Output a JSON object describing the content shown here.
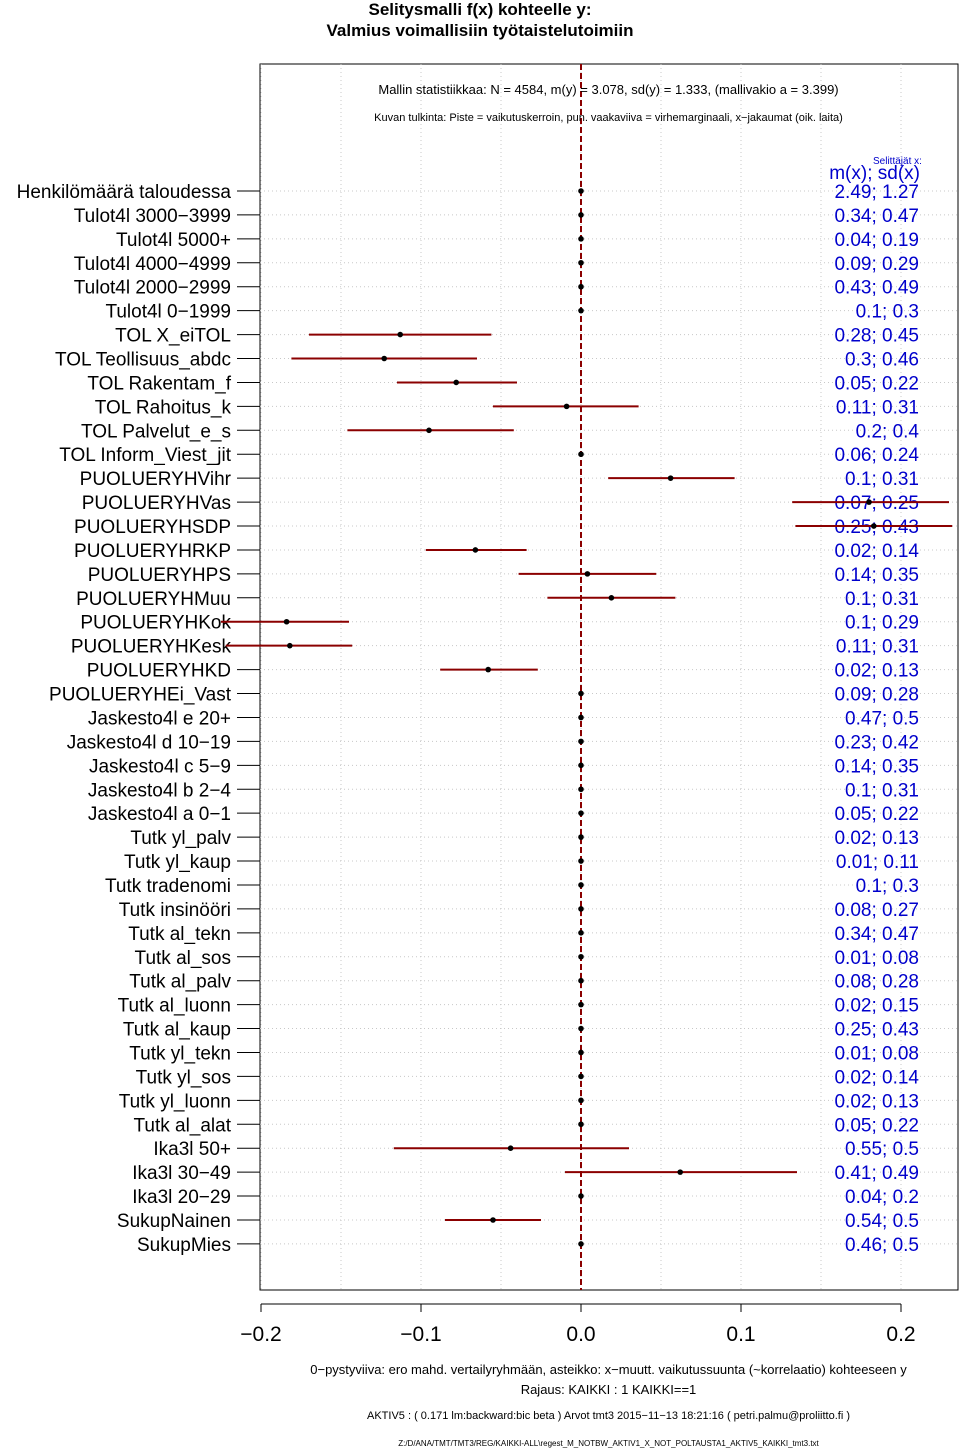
{
  "title": "Selitysmalli f(x) kohteelle y:",
  "subtitle": "Valmius voimallisiin työtaistelutoimiin",
  "stats_line": "Mallin statistiikkaa: N = 4584, m(y) = 3.078, sd(y) = 1.333, (mallivakio a = 3.399)",
  "interpretation_line": "Kuvan tulkinta: Piste = vaikutuskerroin, pun. vaakaviiva = virhemarginaali, x−jakaumat (oik. laita)",
  "right_header_small": "Selittäjät x:",
  "right_header": "m(x); sd(x)",
  "footer": {
    "line1": "0−pystyviiva: ero mahd. vertailyryhmään, asteikko: x−muutt. vaikutussuunta (~korrelaatio) kohteeseen y",
    "line2": "Rajaus: KAIKKI : 1  KAIKKI==1",
    "line3": "AKTIV5 : ( 0.171 lm:backward:bic beta )   Arvot tmt3 2015−11−13 18:21:16 ( petri.palmu@proliitto.fi )",
    "line4": "Z:/D/ANA/TMT/TMT3/REG/KAIKKI-ALL\\regest_M_NOTBW_AKTIV1_X_NOT_POLTAUSTA1_AKTIV5_KAIKKI_tmt3.txt"
  },
  "colors": {
    "point": "#000000",
    "interval": "#8b0000",
    "zero_line": "#8b0000",
    "stats_text": "#0000cc",
    "grid": "#c8c8c8"
  },
  "chart_data": {
    "type": "forest",
    "xlim": [
      -0.2,
      0.2
    ],
    "x_ticks": [
      -0.2,
      -0.1,
      0.0,
      0.1,
      0.2
    ],
    "x_tick_labels": [
      "−0.2",
      "−0.1",
      "0.0",
      "0.1",
      "0.2"
    ],
    "reference_line": 0.0,
    "grid": true,
    "rows": [
      {
        "label": "Henkilömäärä taloudessa",
        "est": 0.0,
        "lo": null,
        "hi": null,
        "stat": "2.49; 1.27"
      },
      {
        "label": "Tulot4l 3000−3999",
        "est": 0.0,
        "lo": null,
        "hi": null,
        "stat": "0.34; 0.47"
      },
      {
        "label": "Tulot4l 5000+",
        "est": 0.0,
        "lo": null,
        "hi": null,
        "stat": "0.04; 0.19"
      },
      {
        "label": "Tulot4l 4000−4999",
        "est": 0.0,
        "lo": null,
        "hi": null,
        "stat": "0.09; 0.29"
      },
      {
        "label": "Tulot4l 2000−2999",
        "est": 0.0,
        "lo": null,
        "hi": null,
        "stat": "0.43; 0.49"
      },
      {
        "label": "Tulot4l 0−1999",
        "est": 0.0,
        "lo": null,
        "hi": null,
        "stat": "0.1; 0.3"
      },
      {
        "label": "TOL X_eiTOL",
        "est": -0.113,
        "lo": -0.17,
        "hi": -0.056,
        "stat": "0.28; 0.45"
      },
      {
        "label": "TOL Teollisuus_abdc",
        "est": -0.123,
        "lo": -0.181,
        "hi": -0.065,
        "stat": "0.3; 0.46"
      },
      {
        "label": "TOL Rakentam_f",
        "est": -0.078,
        "lo": -0.115,
        "hi": -0.04,
        "stat": "0.05; 0.22"
      },
      {
        "label": "TOL Rahoitus_k",
        "est": -0.009,
        "lo": -0.055,
        "hi": 0.036,
        "stat": "0.11; 0.31"
      },
      {
        "label": "TOL Palvelut_e_s",
        "est": -0.095,
        "lo": -0.146,
        "hi": -0.042,
        "stat": "0.2; 0.4"
      },
      {
        "label": "TOL Inform_Viest_jit",
        "est": 0.0,
        "lo": null,
        "hi": null,
        "stat": "0.06; 0.24"
      },
      {
        "label": "PUOLUERYHVihr",
        "est": 0.056,
        "lo": 0.017,
        "hi": 0.096,
        "stat": "0.1; 0.31"
      },
      {
        "label": "PUOLUERYHVas",
        "est": 0.18,
        "lo": 0.132,
        "hi": 0.23,
        "stat": "0.07; 0.25"
      },
      {
        "label": "PUOLUERYHSDP",
        "est": 0.183,
        "lo": 0.134,
        "hi": 0.232,
        "stat": "0.25; 0.43"
      },
      {
        "label": "PUOLUERYHRKP",
        "est": -0.066,
        "lo": -0.097,
        "hi": -0.034,
        "stat": "0.02; 0.14"
      },
      {
        "label": "PUOLUERYHPS",
        "est": 0.004,
        "lo": -0.039,
        "hi": 0.047,
        "stat": "0.14; 0.35"
      },
      {
        "label": "PUOLUERYHMuu",
        "est": 0.019,
        "lo": -0.021,
        "hi": 0.059,
        "stat": "0.1; 0.31"
      },
      {
        "label": "PUOLUERYHKok",
        "est": -0.184,
        "lo": -0.225,
        "hi": -0.145,
        "stat": "0.1; 0.29"
      },
      {
        "label": "PUOLUERYHKesk",
        "est": -0.182,
        "lo": -0.222,
        "hi": -0.143,
        "stat": "0.11; 0.31"
      },
      {
        "label": "PUOLUERYHKD",
        "est": -0.058,
        "lo": -0.088,
        "hi": -0.027,
        "stat": "0.02; 0.13"
      },
      {
        "label": "PUOLUERYHEi_Vast",
        "est": 0.0,
        "lo": null,
        "hi": null,
        "stat": "0.09; 0.28"
      },
      {
        "label": "Jaskesto4l e 20+",
        "est": 0.0,
        "lo": null,
        "hi": null,
        "stat": "0.47; 0.5"
      },
      {
        "label": "Jaskesto4l d 10−19",
        "est": 0.0,
        "lo": null,
        "hi": null,
        "stat": "0.23; 0.42"
      },
      {
        "label": "Jaskesto4l c 5−9",
        "est": 0.0,
        "lo": null,
        "hi": null,
        "stat": "0.14; 0.35"
      },
      {
        "label": "Jaskesto4l b 2−4",
        "est": 0.0,
        "lo": null,
        "hi": null,
        "stat": "0.1; 0.31"
      },
      {
        "label": "Jaskesto4l a 0−1",
        "est": 0.0,
        "lo": null,
        "hi": null,
        "stat": "0.05; 0.22"
      },
      {
        "label": "Tutk yl_palv",
        "est": 0.0,
        "lo": null,
        "hi": null,
        "stat": "0.02; 0.13"
      },
      {
        "label": "Tutk yl_kaup",
        "est": 0.0,
        "lo": null,
        "hi": null,
        "stat": "0.01; 0.11"
      },
      {
        "label": "Tutk tradenomi",
        "est": 0.0,
        "lo": null,
        "hi": null,
        "stat": "0.1; 0.3"
      },
      {
        "label": "Tutk insinööri",
        "est": 0.0,
        "lo": null,
        "hi": null,
        "stat": "0.08; 0.27"
      },
      {
        "label": "Tutk al_tekn",
        "est": 0.0,
        "lo": null,
        "hi": null,
        "stat": "0.34; 0.47"
      },
      {
        "label": "Tutk al_sos",
        "est": 0.0,
        "lo": null,
        "hi": null,
        "stat": "0.01; 0.08"
      },
      {
        "label": "Tutk al_palv",
        "est": 0.0,
        "lo": null,
        "hi": null,
        "stat": "0.08; 0.28"
      },
      {
        "label": "Tutk al_luonn",
        "est": 0.0,
        "lo": null,
        "hi": null,
        "stat": "0.02; 0.15"
      },
      {
        "label": "Tutk al_kaup",
        "est": 0.0,
        "lo": null,
        "hi": null,
        "stat": "0.25; 0.43"
      },
      {
        "label": "Tutk yl_tekn",
        "est": 0.0,
        "lo": null,
        "hi": null,
        "stat": "0.01; 0.08"
      },
      {
        "label": "Tutk yl_sos",
        "est": 0.0,
        "lo": null,
        "hi": null,
        "stat": "0.02; 0.14"
      },
      {
        "label": "Tutk yl_luonn",
        "est": 0.0,
        "lo": null,
        "hi": null,
        "stat": "0.02; 0.13"
      },
      {
        "label": "Tutk al_alat",
        "est": 0.0,
        "lo": null,
        "hi": null,
        "stat": "0.05; 0.22"
      },
      {
        "label": "Ika3l 50+",
        "est": -0.044,
        "lo": -0.117,
        "hi": 0.03,
        "stat": "0.55; 0.5"
      },
      {
        "label": "Ika3l 30−49",
        "est": 0.062,
        "lo": -0.01,
        "hi": 0.135,
        "stat": "0.41; 0.49"
      },
      {
        "label": "Ika3l 20−29",
        "est": 0.0,
        "lo": null,
        "hi": null,
        "stat": "0.04; 0.2"
      },
      {
        "label": "SukupNainen",
        "est": -0.055,
        "lo": -0.085,
        "hi": -0.025,
        "stat": "0.54; 0.5"
      },
      {
        "label": "SukupMies",
        "est": 0.0,
        "lo": null,
        "hi": null,
        "stat": "0.46; 0.5"
      }
    ]
  }
}
